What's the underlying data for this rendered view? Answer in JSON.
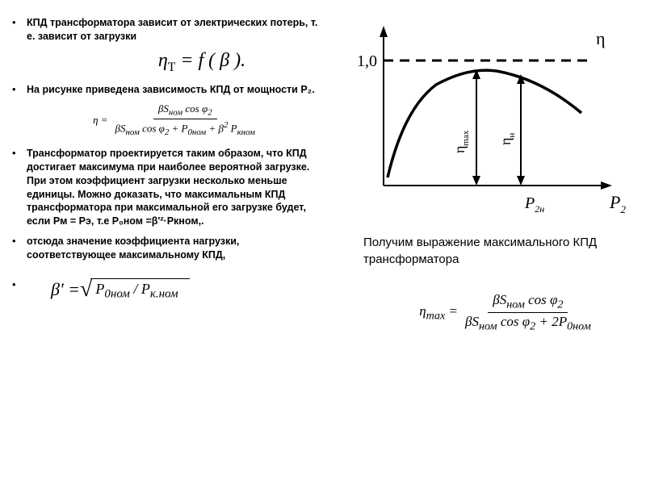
{
  "left": {
    "b1": "КПД трансформатора зависит от электрических потерь, т. е. зависит от загрузки",
    "f1_lhs": "η",
    "f1_sub": "T",
    "f1_rhs": " = f ( β ).",
    "b2": "На рисунке приведена зависимость КПД от мощности P₂.",
    "f2": {
      "lhs": "η  = ",
      "num": "βS<sub>ном</sub> cos φ<sub>2</sub>",
      "den": "βS<sub>ном</sub> cos φ<sub>2</sub> + P<sub>0ном</sub> + β<sup>2</sup> P<sub>кном</sub>"
    },
    "b3": "Трансформатор проектируется таким образом, что КПД достигает максимума при наиболее вероятной загрузке. При этом коэффициент загрузки несколько меньше единицы. Можно доказать, что максимальным КПД трансформатора при максимальной его загрузке будет, если Pᴍ = Pэ, т.е P₀ном =β'²·Pкном,.",
    "b4": "отсюда значение коэффициента нагрузки, соответствующее максимальному КПД,",
    "f3": {
      "lhs": "β' = ",
      "body": "P<sub>0ном</sub> / P<sub>к.ном</sub>"
    }
  },
  "right": {
    "chart": {
      "y_label": "η",
      "y_tick": "1,0",
      "x_label": "P",
      "x_sub": "2",
      "x_tick_label": "P",
      "x_tick_sub": "2н",
      "arrow1": "η",
      "arrow1_sub": "max",
      "arrow2": "η",
      "arrow2_sub": "н",
      "curve_color": "#000000",
      "dash_color": "#000000",
      "axis_width": 2,
      "curve_width": 3.5
    },
    "text": "Получим выражение максимального КПД трансформатора",
    "f4": {
      "lhs": "η<sub>max</sub> = ",
      "num": "βS<sub>ном</sub> cos φ<sub>2</sub>",
      "den": "βS<sub>ном</sub> cos φ<sub>2</sub> + 2P<sub>0ном</sub>"
    }
  }
}
